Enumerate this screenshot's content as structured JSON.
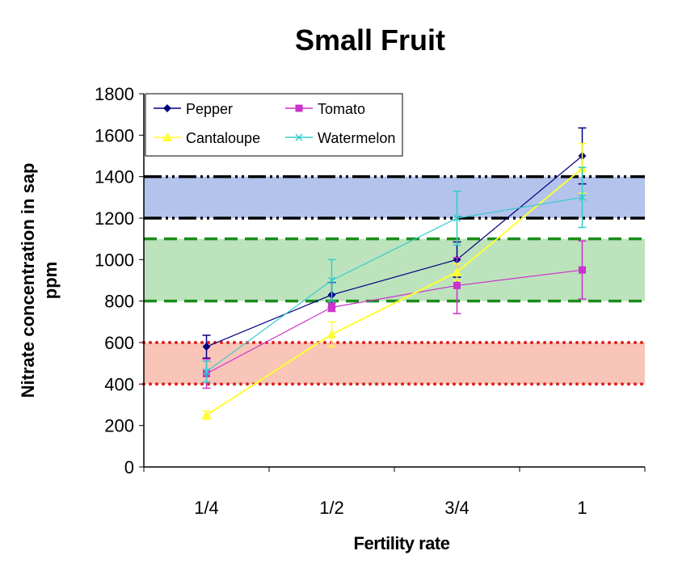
{
  "chart_data": {
    "type": "line",
    "title": "Small Fruit",
    "xlabel": "Fertility rate",
    "ylabel": [
      "Nitrate concentration in sap",
      "ppm"
    ],
    "categories": [
      "1/4",
      "1/2",
      "3/4",
      "1"
    ],
    "ylim": [
      0,
      1800
    ],
    "yticks": [
      0,
      200,
      400,
      600,
      800,
      1000,
      1200,
      1400,
      1600,
      1800
    ],
    "grid": false,
    "legend_placement": "top-left",
    "series": [
      {
        "name": "Pepper",
        "color": "#000080",
        "marker": "diamond",
        "values": [
          580,
          830,
          1000,
          1500
        ],
        "errors": [
          55,
          60,
          85,
          135
        ]
      },
      {
        "name": "Tomato",
        "color": "#cc33cc",
        "marker": "square",
        "values": [
          450,
          770,
          875,
          950
        ],
        "errors": [
          70,
          20,
          135,
          140
        ]
      },
      {
        "name": "Cantaloupe",
        "color": "#ffff33",
        "marker": "triangle",
        "values": [
          250,
          640,
          940,
          1440
        ],
        "errors": [
          20,
          60,
          40,
          120
        ]
      },
      {
        "name": "Watermelon",
        "color": "#33cccc",
        "marker": "x",
        "values": [
          460,
          900,
          1200,
          1300
        ],
        "errors": [
          50,
          100,
          130,
          145
        ]
      }
    ],
    "bands": [
      {
        "range": [
          1200,
          1400
        ],
        "fill": "#b3c3ec",
        "line_color": "#000000",
        "line_style": "dash-dot-dot"
      },
      {
        "range": [
          800,
          1100
        ],
        "fill": "#bde3bd",
        "line_color": "#1a8c1a",
        "line_style": "dashed"
      },
      {
        "range": [
          400,
          600
        ],
        "fill": "#f8c5b8",
        "line_color": "#e02020",
        "line_style": "dotted"
      }
    ]
  }
}
